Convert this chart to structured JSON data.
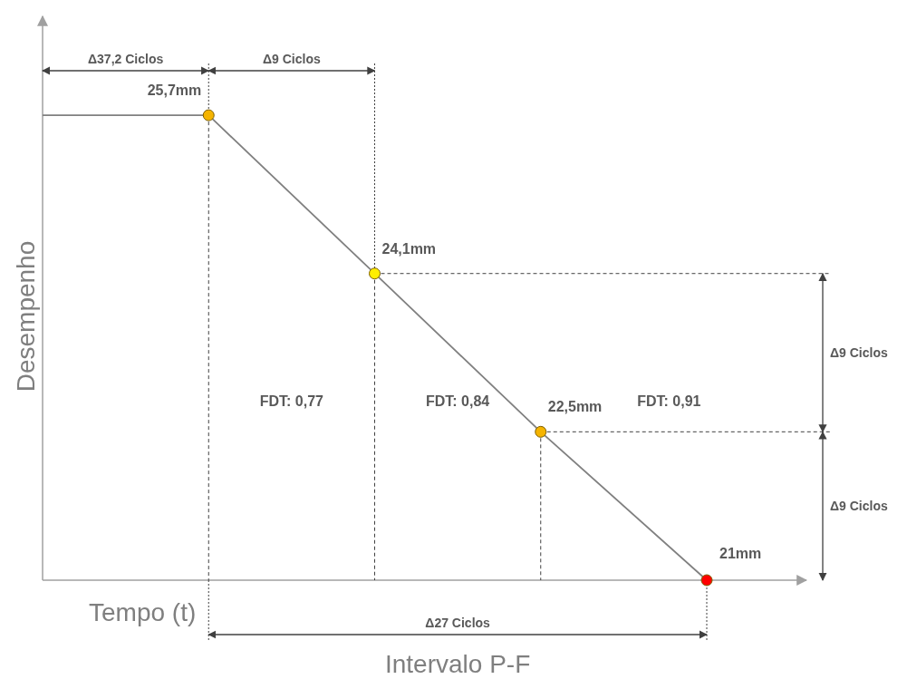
{
  "chart_data": {
    "type": "line",
    "xlabel": "Tempo (t)",
    "ylabel": "Desempenho",
    "categories": [
      null,
      null,
      null,
      null,
      null
    ],
    "series": [
      {
        "color": "#808080",
        "values": [
          25.7,
          25.7,
          24.1,
          22.5,
          21
        ],
        "value_labels": [
          null,
          "25,7mm",
          "24,1mm",
          "22,5mm",
          "21mm"
        ],
        "colors": [
          null,
          "#f5b400",
          "#ffee00",
          "#f5b400",
          "#ff0000"
        ]
      }
    ],
    "ylim": [
      21,
      26.7
    ],
    "grid": "x",
    "marker": "circle",
    "line_style": "solid",
    "annotations": [
      "Δ37,2 Ciclos",
      "Δ9 Ciclos",
      "Δ9 Ciclos",
      "Δ9 Ciclos",
      "Δ27 Ciclos",
      "Intervalo P-F",
      "FDT: 0,77",
      "FDT: 0,84",
      "FDT: 0,91"
    ]
  }
}
